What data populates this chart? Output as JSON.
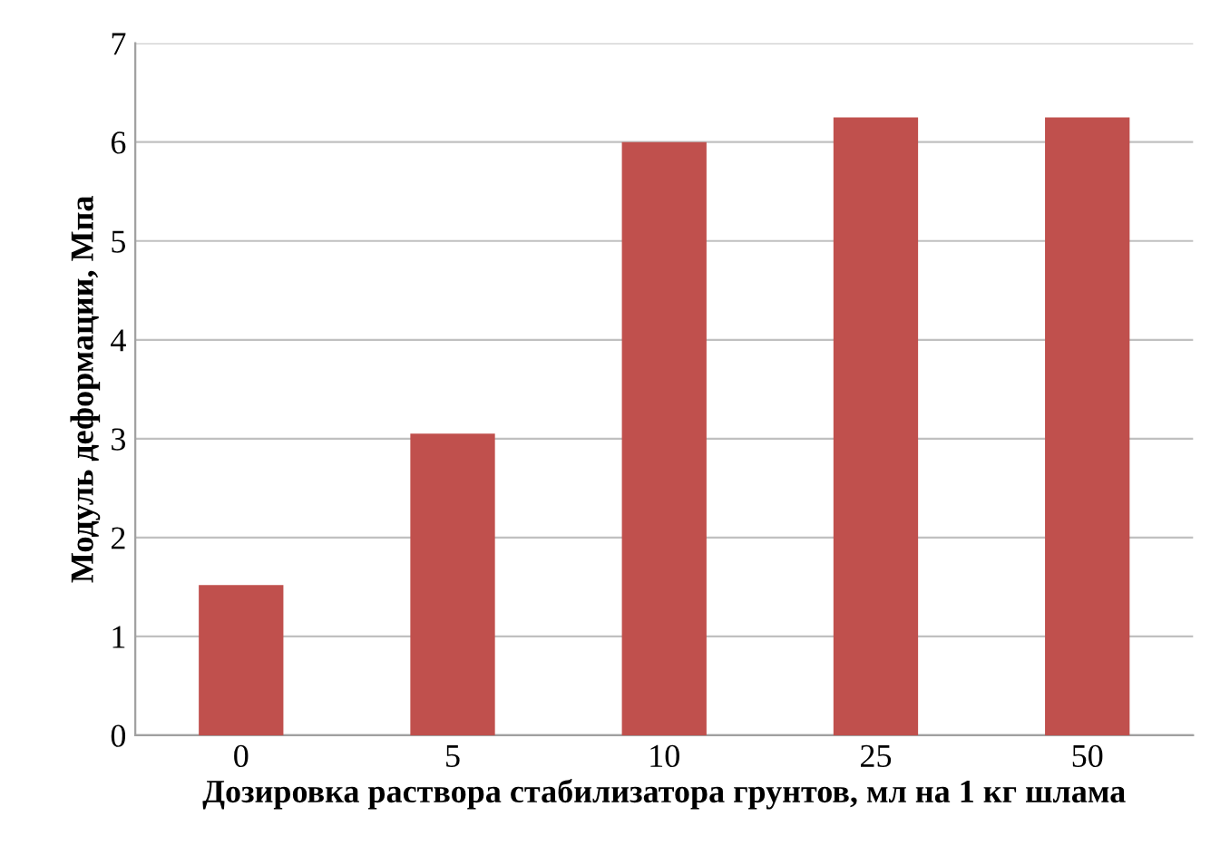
{
  "chart_data": {
    "type": "bar",
    "xlabel": "Дозировка раствора стабилизатора грунтов, мл на 1 кг шлама",
    "ylabel": "Модуль деформации, Мпа",
    "categories": [
      "0",
      "5",
      "10",
      "25",
      "50"
    ],
    "values": [
      1.52,
      3.05,
      6.0,
      6.25,
      6.25
    ],
    "color": "#c0504d",
    "ylim": [
      0,
      7
    ],
    "yticks": [
      0,
      1,
      2,
      3,
      4,
      5,
      6,
      7
    ],
    "grid": "y",
    "legend": false
  }
}
